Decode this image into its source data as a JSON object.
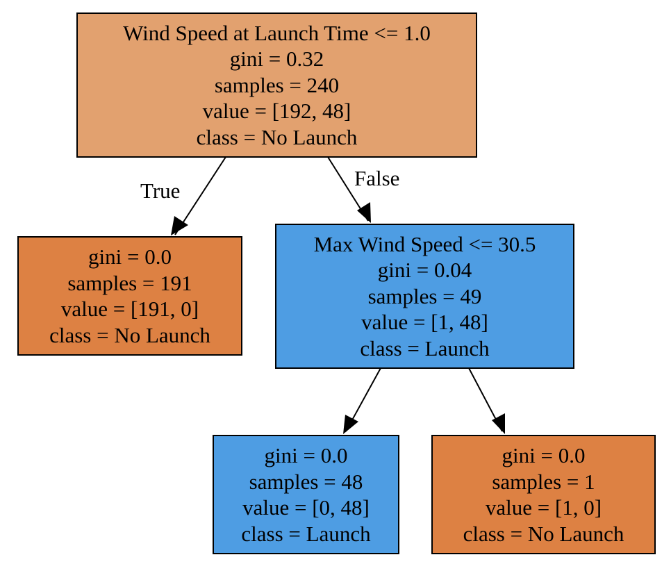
{
  "colors": {
    "root": "#e2a16f",
    "no_launch_pure": "#dd8143",
    "launch": "#4e9de3",
    "line": "#000000"
  },
  "edge_labels": {
    "true_label": "True",
    "false_label": "False"
  },
  "nodes": {
    "root": {
      "split": "Wind Speed at Launch Time <= 1.0",
      "gini": "gini = 0.32",
      "samples": "samples = 240",
      "value": "value = [192, 48]",
      "class": "class = No Launch"
    },
    "left_leaf": {
      "gini": "gini = 0.0",
      "samples": "samples = 191",
      "value": "value = [191, 0]",
      "class": "class = No Launch"
    },
    "right_split": {
      "split": "Max Wind Speed <= 30.5",
      "gini": "gini = 0.04",
      "samples": "samples = 49",
      "value": "value = [1, 48]",
      "class": "class = Launch"
    },
    "bottom_left_leaf": {
      "gini": "gini = 0.0",
      "samples": "samples = 48",
      "value": "value = [0, 48]",
      "class": "class = Launch"
    },
    "bottom_right_leaf": {
      "gini": "gini = 0.0",
      "samples": "samples = 1",
      "value": "value = [1, 0]",
      "class": "class = No Launch"
    }
  }
}
